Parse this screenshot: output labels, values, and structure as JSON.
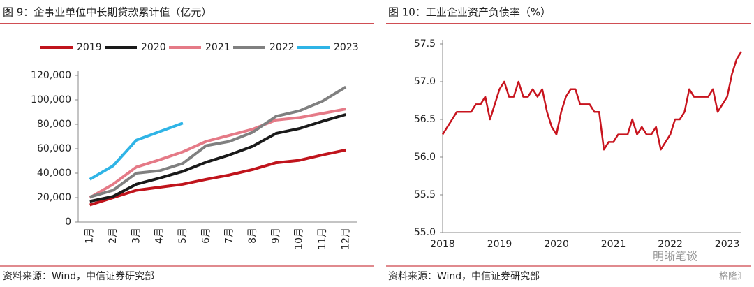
{
  "chart_data": [
    {
      "type": "line",
      "title": "图 9：企事业单位中长期贷款累计值（亿元）",
      "source": "资料来源：Wind，中信证券研究部",
      "categories": [
        "1月",
        "2月",
        "3月",
        "4月",
        "5月",
        "6月",
        "7月",
        "8月",
        "9月",
        "10月",
        "11月",
        "12月"
      ],
      "series": [
        {
          "name": "2019",
          "color": "#c0141c",
          "values": [
            14000,
            20000,
            26000,
            28500,
            31000,
            35000,
            38500,
            43000,
            48500,
            50500,
            55000,
            59000
          ]
        },
        {
          "name": "2020",
          "color": "#1a1a1a",
          "values": [
            17000,
            21000,
            31000,
            36000,
            41500,
            49000,
            55000,
            62000,
            72500,
            76500,
            82500,
            88000
          ]
        },
        {
          "name": "2021",
          "color": "#e57a87",
          "values": [
            20000,
            31000,
            45000,
            51000,
            57500,
            66000,
            71000,
            76000,
            83500,
            85500,
            89000,
            92500
          ]
        },
        {
          "name": "2022",
          "color": "#808080",
          "values": [
            20500,
            26000,
            40000,
            42000,
            48000,
            62500,
            66000,
            73500,
            86500,
            91000,
            99000,
            110500
          ]
        },
        {
          "name": "2023",
          "color": "#2fb4e6",
          "values": [
            35000,
            46000,
            67000,
            74000,
            81000,
            null,
            null,
            null,
            null,
            null,
            null,
            null
          ]
        }
      ],
      "ylim": [
        0,
        120000
      ],
      "yticks": [
        0,
        {
          "value": 20000,
          "label": "20,000"
        },
        {
          "value": 40000,
          "label": "40,000"
        },
        {
          "value": 60000,
          "label": "60,000"
        },
        {
          "value": 80000,
          "label": "80,000"
        },
        {
          "value": 100000,
          "label": "100,000"
        },
        {
          "value": 120000,
          "label": "120,000"
        }
      ],
      "legend": "top"
    },
    {
      "type": "line",
      "title": "图 10：工业企业资产负债率（%）",
      "source": "资料来源：Wind，中信证券研究部",
      "categories": [
        "2018",
        null,
        null,
        null,
        null,
        null,
        null,
        null,
        null,
        null,
        null,
        null,
        "2019",
        null,
        null,
        null,
        null,
        null,
        null,
        null,
        null,
        null,
        null,
        null,
        "2020",
        null,
        null,
        null,
        null,
        null,
        null,
        null,
        null,
        null,
        null,
        null,
        "2021",
        null,
        null,
        null,
        null,
        null,
        null,
        null,
        null,
        null,
        null,
        null,
        "2022",
        null,
        null,
        null,
        null,
        null,
        null,
        null,
        null,
        null,
        null,
        null,
        "2023",
        null,
        null,
        null
      ],
      "color": "#c8141e",
      "values": [
        56.3,
        56.4,
        56.5,
        56.6,
        56.6,
        56.6,
        56.6,
        56.7,
        56.7,
        56.8,
        56.5,
        56.7,
        56.9,
        57.0,
        56.8,
        56.8,
        57.0,
        56.8,
        56.8,
        56.9,
        56.8,
        56.9,
        56.6,
        56.4,
        56.3,
        56.6,
        56.8,
        56.9,
        56.9,
        56.7,
        56.7,
        56.7,
        56.6,
        56.6,
        56.1,
        56.2,
        56.2,
        56.3,
        56.3,
        56.3,
        56.5,
        56.3,
        56.4,
        56.3,
        56.3,
        56.4,
        56.1,
        56.2,
        56.3,
        56.5,
        56.5,
        56.6,
        56.9,
        56.8,
        56.8,
        56.8,
        56.8,
        56.9,
        56.6,
        56.7,
        56.8,
        57.1,
        57.3,
        57.4
      ],
      "ylim": [
        55,
        57.5
      ],
      "yticks": [
        {
          "value": 55,
          "label": "55.0"
        },
        55.5,
        {
          "value": 56,
          "label": "56.0"
        },
        56.5,
        {
          "value": 57,
          "label": "57.0"
        },
        57.5
      ]
    }
  ],
  "watermark": "明晰笔谈",
  "watermark2": "格隆汇"
}
